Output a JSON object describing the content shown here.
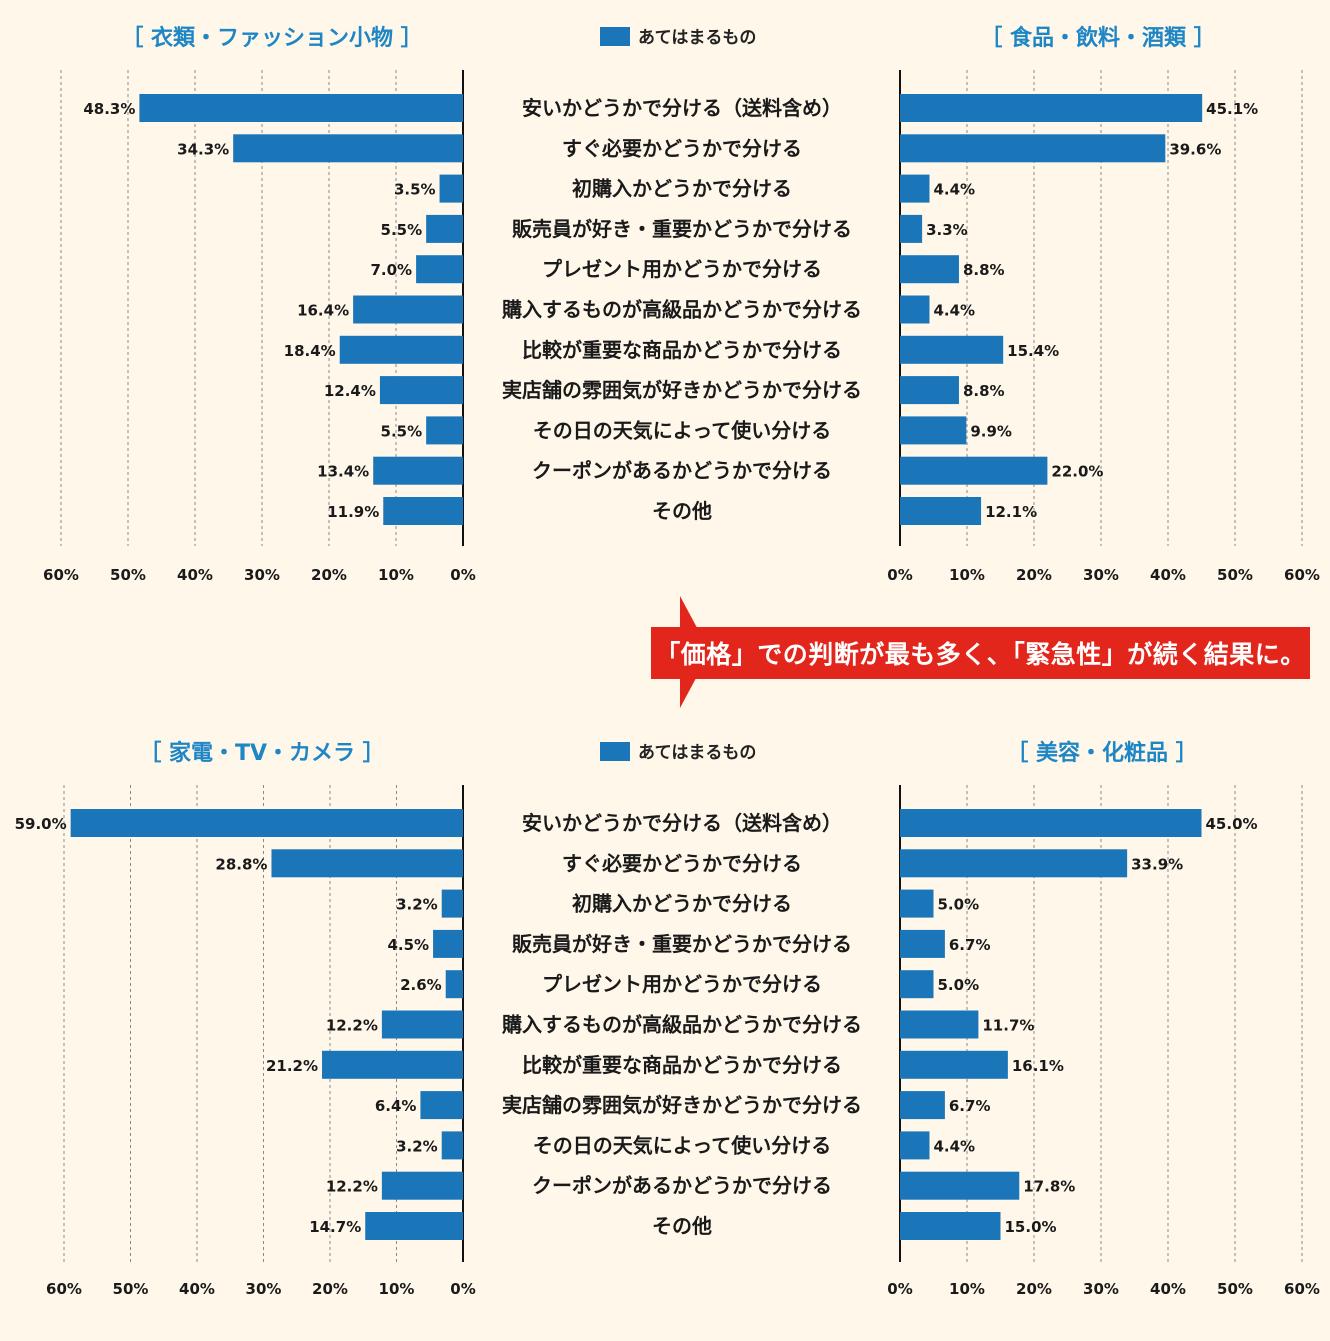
{
  "legend": {
    "label": "あてはまるもの",
    "color": "#1a76b9"
  },
  "callout": {
    "text": "「価格」での判断が最も多く、「緊急性」が続く結果に。",
    "color": "#e3261b"
  },
  "categories": [
    "安いかどうかで分ける（送料含め）",
    "すぐ必要かどうかで分ける",
    "初購入かどうかで分ける",
    "販売員が好き・重要かどうかで分ける",
    "プレゼント用かどうかで分ける",
    "購入するものが高級品かどうかで分ける",
    "比較が重要な商品かどうかで分ける",
    "実店舗の雰囲気が好きかどうかで分ける",
    "その日の天気によって使い分ける",
    "クーポンがあるかどうかで分ける",
    "その他"
  ],
  "chart_data": [
    {
      "type": "bar",
      "title": "［  衣類・ファッション小物  ］",
      "orientation": "horizontal",
      "direction": "right-to-left",
      "xlim": [
        0,
        60
      ],
      "ticks": [
        "60%",
        "50%",
        "40%",
        "30%",
        "20%",
        "10%",
        "0%"
      ],
      "values": [
        48.3,
        34.3,
        3.5,
        5.5,
        7.0,
        16.4,
        18.4,
        12.4,
        5.5,
        13.4,
        11.9
      ],
      "value_labels": [
        "48.3%",
        "34.3%",
        "3.5%",
        "5.5%",
        "7.0%",
        "16.4%",
        "18.4%",
        "12.4%",
        "5.5%",
        "13.4%",
        "11.9%"
      ]
    },
    {
      "type": "bar",
      "title": "［  食品・飲料・酒類  ］",
      "orientation": "horizontal",
      "direction": "left-to-right",
      "xlim": [
        0,
        60
      ],
      "ticks": [
        "0%",
        "10%",
        "20%",
        "30%",
        "40%",
        "50%",
        "60%"
      ],
      "values": [
        45.1,
        39.6,
        4.4,
        3.3,
        8.8,
        4.4,
        15.4,
        8.8,
        9.9,
        22.0,
        12.1
      ],
      "value_labels": [
        "45.1%",
        "39.6%",
        "4.4%",
        "3.3%",
        "8.8%",
        "4.4%",
        "15.4%",
        "8.8%",
        "9.9%",
        "22.0%",
        "12.1%"
      ]
    },
    {
      "type": "bar",
      "title": "［  家電・TV・カメラ  ］",
      "orientation": "horizontal",
      "direction": "right-to-left",
      "xlim": [
        0,
        60
      ],
      "ticks": [
        "60%",
        "50%",
        "40%",
        "30%",
        "20%",
        "10%",
        "0%"
      ],
      "values": [
        59.0,
        28.8,
        3.2,
        4.5,
        2.6,
        12.2,
        21.2,
        6.4,
        3.2,
        12.2,
        14.7
      ],
      "value_labels": [
        "59.0%",
        "28.8%",
        "3.2%",
        "4.5%",
        "2.6%",
        "12.2%",
        "21.2%",
        "6.4%",
        "3.2%",
        "12.2%",
        "14.7%"
      ]
    },
    {
      "type": "bar",
      "title": "［  美容・化粧品  ］",
      "orientation": "horizontal",
      "direction": "left-to-right",
      "xlim": [
        0,
        60
      ],
      "ticks": [
        "0%",
        "10%",
        "20%",
        "30%",
        "40%",
        "50%",
        "60%"
      ],
      "values": [
        45.0,
        33.9,
        5.0,
        6.7,
        5.0,
        11.7,
        16.1,
        6.7,
        4.4,
        17.8,
        15.0
      ],
      "value_labels": [
        "45.0%",
        "33.9%",
        "5.0%",
        "6.7%",
        "5.0%",
        "11.7%",
        "16.1%",
        "6.7%",
        "4.4%",
        "17.8%",
        "15.0%"
      ]
    }
  ]
}
